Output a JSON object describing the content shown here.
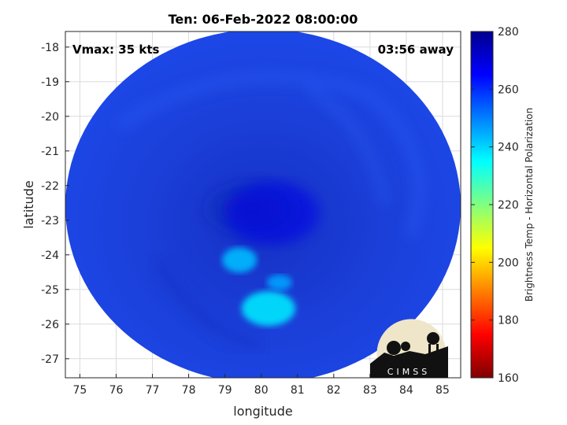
{
  "title": "Ten: 06-Feb-2022 08:00:00",
  "vmax_label": "Vmax: 35 kts",
  "time_away_label": "03:56 away",
  "logo_text": "CIMSS",
  "colors": {
    "colormap": [
      "#7f0000",
      "#ff0000",
      "#ff8000",
      "#ffff00",
      "#80ff80",
      "#00ffff",
      "#0080ff",
      "#0000ff",
      "#00008f"
    ],
    "background_swath": "#1a3ee0"
  },
  "chart_data": {
    "type": "heatmap",
    "title": "Ten: 06-Feb-2022 08:00:00",
    "xlabel": "longitude",
    "ylabel": "latitude",
    "xlim": [
      74.6,
      85.5
    ],
    "ylim": [
      -27.55,
      -17.55
    ],
    "xticks": [
      "75",
      "76",
      "77",
      "78",
      "79",
      "80",
      "81",
      "82",
      "83",
      "84",
      "85"
    ],
    "yticks": [
      "-18",
      "-19",
      "-20",
      "-21",
      "-22",
      "-23",
      "-24",
      "-25",
      "-26",
      "-27"
    ],
    "grid": true,
    "colorbar": {
      "label": "Brightness Temp - Horizontal Polarization",
      "range": [
        160,
        280
      ],
      "ticks": [
        "280",
        "260",
        "240",
        "220",
        "200",
        "180",
        "160"
      ]
    },
    "swath_center": [
      80.0,
      -22.6
    ],
    "features": [
      {
        "lon": 80.2,
        "lat": -25.55,
        "temp": 238
      },
      {
        "lon": 79.4,
        "lat": -24.15,
        "temp": 243
      },
      {
        "lon": 80.5,
        "lat": -24.8,
        "temp": 246
      },
      {
        "lon": 80.3,
        "lat": -22.8,
        "temp": 268
      }
    ]
  }
}
